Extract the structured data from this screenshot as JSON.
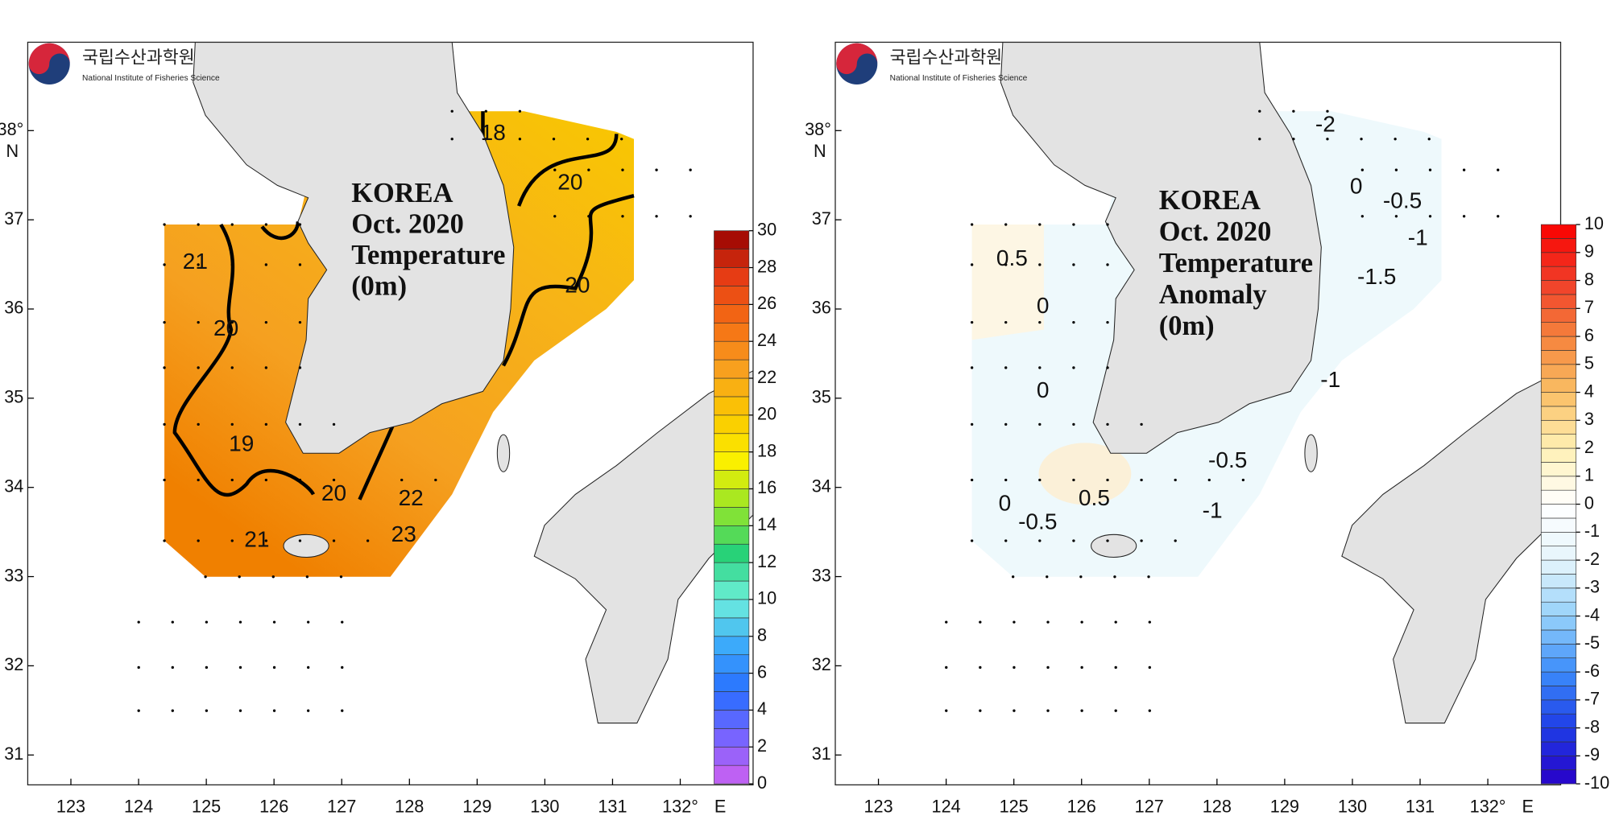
{
  "logo": {
    "korean": "국립수산과학원",
    "english": "National Institute of Fisheries Science"
  },
  "panels": [
    {
      "title_lines": [
        "KOREA",
        "Oct. 2020",
        "Temperature",
        "(0m)"
      ],
      "lat_ticks": [
        31,
        32,
        33,
        34,
        35,
        36,
        37,
        {
          "value": 38,
          "label": "38°"
        }
      ],
      "lon_ticks": [
        123,
        124,
        125,
        126,
        127,
        128,
        129,
        130,
        131,
        {
          "value": 132,
          "label": "132°"
        }
      ],
      "lat_axis_label": "N",
      "lon_axis_label": "E",
      "colorbar_ticks": [
        0,
        2,
        4,
        6,
        8,
        10,
        12,
        14,
        16,
        18,
        20,
        22,
        24,
        26,
        28,
        30
      ],
      "contour_labels": [
        18,
        20,
        20,
        20,
        21,
        19,
        20,
        21,
        22,
        23
      ]
    },
    {
      "title_lines": [
        "KOREA",
        "Oct. 2020",
        "Temperature",
        "Anomaly",
        "(0m)"
      ],
      "lat_ticks": [
        31,
        32,
        33,
        34,
        35,
        36,
        37,
        {
          "value": 38,
          "label": "38°"
        }
      ],
      "lon_ticks": [
        123,
        124,
        125,
        126,
        127,
        128,
        129,
        130,
        131,
        {
          "value": 132,
          "label": "132°"
        }
      ],
      "lat_axis_label": "N",
      "lon_axis_label": "E",
      "colorbar_ticks": [
        -10,
        -9,
        -8,
        -7,
        -6,
        -5,
        -4,
        -3,
        -2,
        -1,
        0,
        1,
        2,
        3,
        4,
        5,
        6,
        7,
        8,
        9,
        10
      ],
      "contour_labels": [
        -2,
        0,
        -0.5,
        -1,
        -1.5,
        0.5,
        0,
        0,
        -1,
        -0.5,
        0.5,
        0,
        -0.5,
        -1
      ]
    }
  ]
}
